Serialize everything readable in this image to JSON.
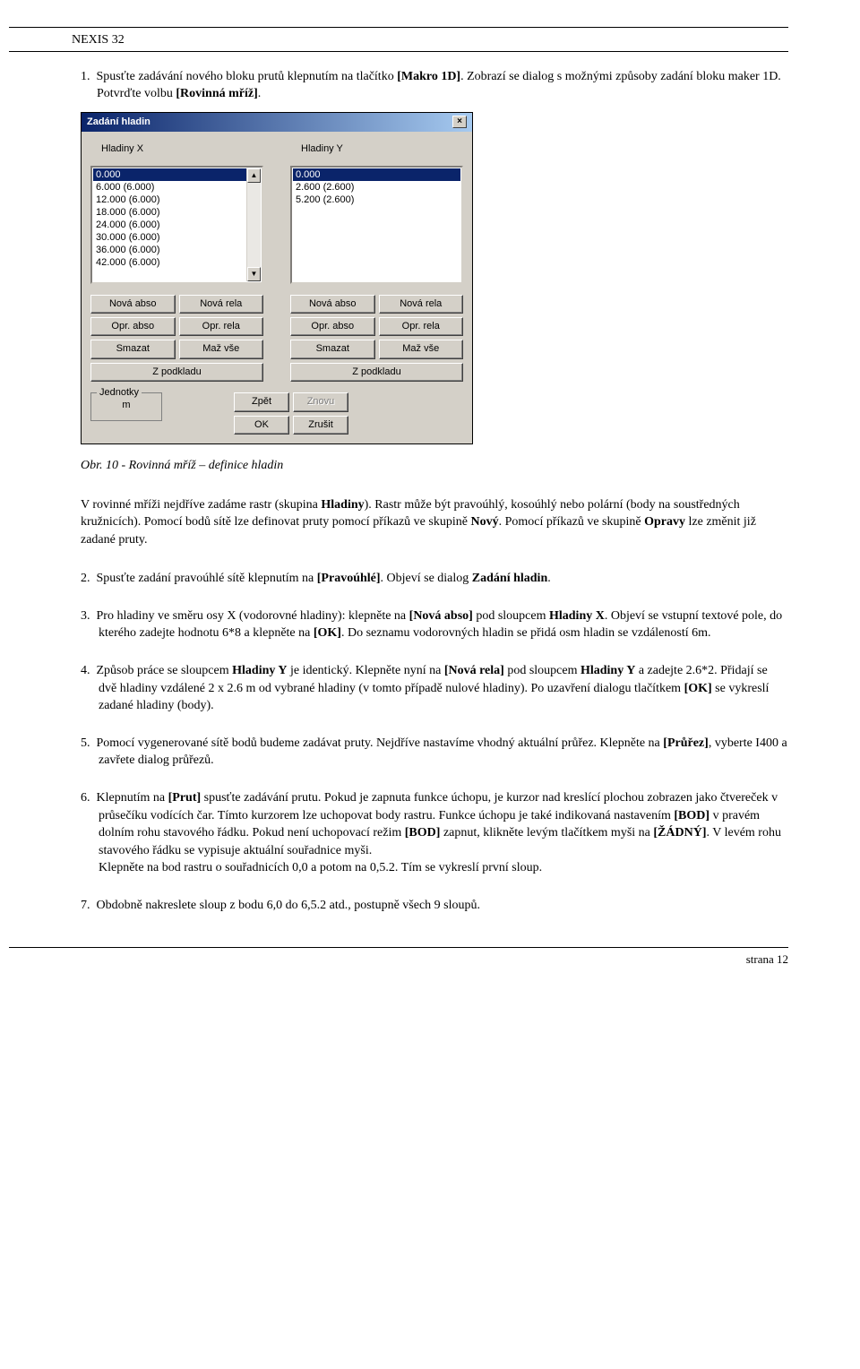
{
  "doc_title": "NEXIS 32",
  "intro_num": "1.",
  "intro_text1": "Spusťte zadávání nového bloku prutů klepnutím na tlačítko ",
  "intro_bold1": "[Makro 1D]",
  "intro_text2": ". Zobrazí se dialog s možnými způsoby zadání bloku maker 1D.",
  "intro_line2a": "Potvrďte volbu ",
  "intro_line2b": "[Rovinná mříž]",
  "intro_line2c": ".",
  "dlg": {
    "title": "Zadání hladin",
    "label_x": "Hladiny X",
    "label_y": "Hladiny Y",
    "list_x": [
      "0.000",
      "6.000 (6.000)",
      "12.000 (6.000)",
      "18.000 (6.000)",
      "24.000 (6.000)",
      "30.000 (6.000)",
      "36.000 (6.000)",
      "42.000 (6.000)"
    ],
    "list_y": [
      "0.000",
      "2.600 (2.600)",
      "5.200 (2.600)"
    ],
    "btn_nova_abso": "Nová abso",
    "btn_nova_rela": "Nová rela",
    "btn_opr_abso": "Opr. abso",
    "btn_opr_rela": "Opr. rela",
    "btn_smazat": "Smazat",
    "btn_maz_vse": "Maž vše",
    "btn_zpodkladu": "Z podkladu",
    "units_legend": "Jednotky",
    "units_value": "m",
    "btn_zpet": "Zpět",
    "btn_znovu": "Znovu",
    "btn_ok": "OK",
    "btn_zrusit": "Zrušit"
  },
  "caption": "Obr. 10 - Rovinná mříž – definice hladin",
  "para1a": "V rovinné mříži nejdříve zadáme rastr (skupina ",
  "para1b": "Hladiny",
  "para1c": "). Rastr může být pravoúhlý, kosoúhlý nebo polární (body na soustředných kružnicích). Pomocí bodů sítě lze definovat pruty pomocí příkazů ve skupině ",
  "para1d": "Nový",
  "para1e": ". Pomocí příkazů ve skupině ",
  "para1f": "Opravy",
  "para1g": " lze změnit již zadané pruty.",
  "step2_num": "2.",
  "step2a": "Spusťte zadání pravoúhlé sítě klepnutím na ",
  "step2b": "[Pravoúhlé]",
  "step2c": ". Objeví se dialog ",
  "step2d": "Zadání hladin",
  "step2e": ".",
  "step3_num": "3.",
  "step3a": "Pro hladiny ve směru osy X (vodorovné hladiny):  klepněte na ",
  "step3b": "[Nová abso]",
  "step3c": " pod sloupcem ",
  "step3d": "Hladiny X",
  "step3e": ". Objeví se vstupní textové pole, do kterého zadejte hodnotu 6*8 a klepněte na ",
  "step3f": "[OK]",
  "step3g": ". Do seznamu vodorovných hladin se přidá osm hladin se vzdáleností 6m.",
  "step4_num": "4.",
  "step4a": "Způsob práce se sloupcem ",
  "step4b": "Hladiny Y",
  "step4c": " je identický.  Klepněte nyní na ",
  "step4d": "[Nová rela]",
  "step4e": " pod sloupcem ",
  "step4f": "Hladiny Y",
  "step4g": " a zadejte 2.6*2. Přidají se dvě hladiny vzdálené 2 x 2.6 m od vybrané hladiny (v tomto případě nulové hladiny). Po uzavření dialogu tlačítkem ",
  "step4h": "[OK]",
  "step4i": " se vykreslí zadané hladiny (body).",
  "step5_num": "5.",
  "step5a": "Pomocí vygenerované sítě bodů budeme zadávat pruty. Nejdříve nastavíme vhodný aktuální průřez. Klepněte na ",
  "step5b": "[Průřez]",
  "step5c": ", vyberte I400 a zavřete dialog průřezů.",
  "step6_num": "6.",
  "step6a": "Klepnutím na ",
  "step6b": "[Prut]",
  "step6c": " spusťte zadávání prutu. Pokud je zapnuta funkce úchopu, je kurzor nad kreslící plochou zobrazen jako čtvereček v průsečíku vodících čar. Tímto kurzorem lze uchopovat body rastru. Funkce úchopu je také indikovaná nastavením ",
  "step6d": "[BOD]",
  "step6e": " v pravém dolním rohu stavového řádku. Pokud není uchopovací režim ",
  "step6f": "[BOD]",
  "step6g": " zapnut, klikněte levým tlačítkem myši na ",
  "step6h": "[ŽÁDNÝ]",
  "step6i": ". V levém rohu stavového řádku se vypisuje aktuální souřadnice myši.",
  "step6j": "Klepněte na bod rastru o souřadnicích 0,0 a potom na 0,5.2. Tím se vykreslí první sloup.",
  "step7_num": "7.",
  "step7a": "Obdobně nakreslete sloup z bodu  6,0 do 6,5.2 atd., postupně všech 9 sloupů.",
  "footer": "strana 12"
}
